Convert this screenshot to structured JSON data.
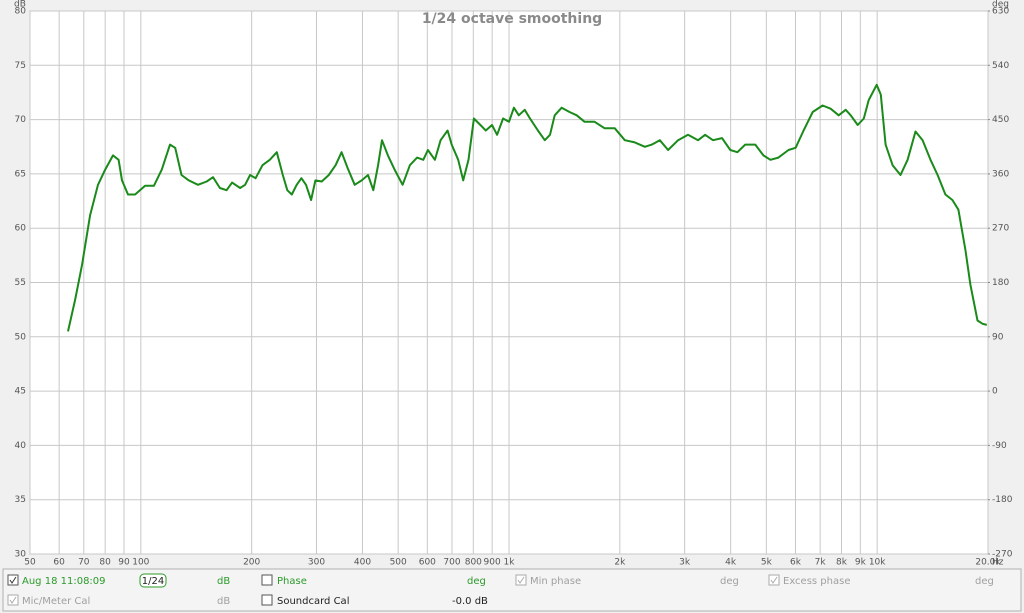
{
  "chart_data": {
    "type": "line",
    "title": "1/24 octave smoothing",
    "x_label": "Hz",
    "y_label": "dB",
    "y2_label": "deg",
    "log_x": true,
    "grid": true,
    "xlim": [
      50,
      20000
    ],
    "ylim": [
      30,
      80
    ],
    "y2lim": [
      -270,
      630
    ],
    "xticks": [
      50,
      60,
      70,
      80,
      90,
      100,
      200,
      300,
      400,
      500,
      600,
      700,
      800,
      900,
      {
        "value": 1000,
        "label": "1k"
      },
      {
        "value": 2000,
        "label": "2k"
      },
      {
        "value": 3000,
        "label": "3k"
      },
      {
        "value": 4000,
        "label": "4k"
      },
      {
        "value": 5000,
        "label": "5k"
      },
      {
        "value": 6000,
        "label": "6k"
      },
      {
        "value": 7000,
        "label": "7k"
      },
      {
        "value": 8000,
        "label": "8k"
      },
      {
        "value": 9000,
        "label": "9k"
      },
      {
        "value": 10000,
        "label": "10k"
      },
      {
        "value": 20000,
        "label": "20.0k"
      }
    ],
    "yticks": [
      30,
      35,
      40,
      45,
      50,
      55,
      60,
      65,
      70,
      75,
      80
    ],
    "y2ticks": [
      -270,
      -180,
      -90,
      0,
      90,
      180,
      270,
      360,
      450,
      540,
      630
    ],
    "series": [
      {
        "name": "Aug 18 11:08:09",
        "color": "#1a8a1a",
        "x": [
          63.4,
          66.3,
          69.2,
          72.8,
          76.5,
          80,
          84,
          87,
          88.9,
          92.3,
          96.5,
          102.7,
          108.5,
          114,
          120,
          124,
          129,
          135,
          143,
          151,
          157,
          164,
          171,
          177,
          186,
          192,
          198,
          205,
          214,
          224,
          234,
          243,
          250,
          257,
          265,
          273,
          281,
          290,
          298,
          310,
          324,
          338,
          351,
          365,
          381,
          398,
          414,
          428,
          441,
          452,
          469,
          489,
          514,
          538,
          563,
          585,
          602,
          629,
          652,
          681,
          699,
          728,
          751,
          776,
          803,
          836,
          865,
          899,
          928,
          964,
          1000,
          1031,
          1063,
          1103,
          1145,
          1198,
          1251,
          1292,
          1331,
          1390,
          1460,
          1527,
          1604,
          1708,
          1819,
          1938,
          2063,
          2196,
          2339,
          2443,
          2568,
          2704,
          2879,
          3064,
          3263,
          3409,
          3582,
          3788,
          3990,
          4173,
          4381,
          4666,
          4908,
          5129,
          5393,
          5743,
          6003,
          6313,
          6682,
          7110,
          7475,
          7860,
          8214,
          8476,
          8855,
          9195,
          9486,
          9969,
          10230,
          10540,
          11010,
          11574,
          12095,
          12712,
          13285,
          13962,
          14590,
          15320,
          16010,
          16615,
          17366,
          17910,
          18725,
          19340,
          19850
        ],
        "values": [
          50.5,
          53.4,
          56.6,
          61.2,
          64.0,
          65.4,
          66.7,
          66.3,
          64.4,
          63.1,
          63.1,
          63.9,
          63.9,
          65.4,
          67.7,
          67.4,
          64.9,
          64.4,
          64.0,
          64.3,
          64.7,
          63.7,
          63.5,
          64.2,
          63.7,
          64.0,
          64.9,
          64.6,
          65.8,
          66.3,
          67.0,
          64.9,
          63.5,
          63.1,
          64.0,
          64.6,
          64.0,
          62.6,
          64.4,
          64.3,
          64.9,
          65.8,
          67.0,
          65.5,
          64.0,
          64.4,
          64.9,
          63.5,
          65.8,
          68.1,
          66.7,
          65.4,
          64.0,
          65.8,
          66.5,
          66.3,
          67.2,
          66.3,
          68.1,
          69.0,
          67.7,
          66.3,
          64.4,
          66.3,
          70.1,
          69.5,
          69.0,
          69.5,
          68.6,
          70.1,
          69.8,
          71.1,
          70.4,
          70.9,
          70.0,
          69.0,
          68.1,
          68.6,
          70.4,
          71.1,
          70.7,
          70.4,
          69.8,
          69.8,
          69.2,
          69.2,
          68.1,
          67.9,
          67.5,
          67.7,
          68.1,
          67.2,
          68.1,
          68.6,
          68.1,
          68.6,
          68.1,
          68.3,
          67.2,
          67.0,
          67.7,
          67.7,
          66.7,
          66.3,
          66.5,
          67.2,
          67.4,
          69.0,
          70.7,
          71.3,
          71.0,
          70.4,
          70.9,
          70.4,
          69.5,
          70.1,
          71.8,
          73.2,
          72.3,
          67.7,
          65.8,
          64.9,
          66.3,
          68.9,
          68.1,
          66.3,
          64.9,
          63.1,
          62.6,
          61.7,
          58.0,
          54.8,
          51.5,
          51.2,
          51.1
        ]
      }
    ]
  },
  "trace_panel": {
    "smoothing": "1/24",
    "units": "dB",
    "phase": {
      "label": "Phase",
      "units": "deg"
    },
    "min_phase": {
      "label": "Min phase",
      "units": "deg"
    },
    "excess_phase": {
      "label": "Excess phase",
      "units": "deg"
    },
    "mic_cal": {
      "label": "Mic/Meter Cal",
      "units": "dB"
    },
    "soundcard_cal": {
      "label": "Soundcard Cal",
      "value": "-0.0 dB"
    }
  }
}
